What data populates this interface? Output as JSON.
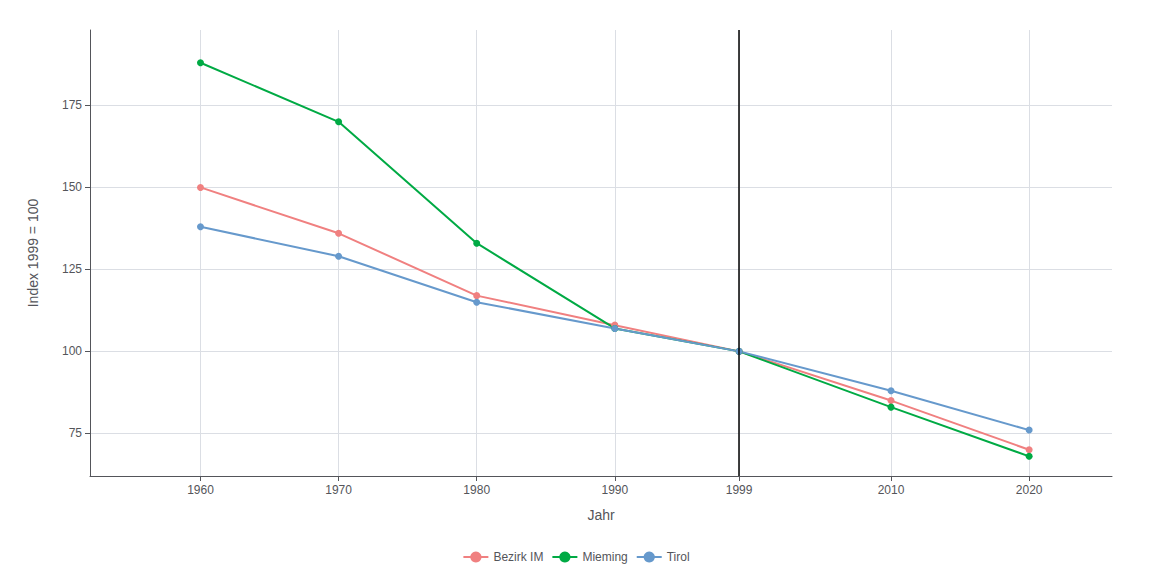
{
  "chart_data": {
    "type": "line",
    "x": [
      1960,
      1970,
      1980,
      1990,
      1999,
      2010,
      2020
    ],
    "series": [
      {
        "name": "Bezirk IM",
        "color": "#F08080",
        "marker": "circle",
        "values": [
          150,
          136,
          117,
          108,
          100,
          85,
          70
        ]
      },
      {
        "name": "Mieming",
        "color": "#00AA44",
        "marker": "circle",
        "values": [
          188,
          170,
          133,
          107,
          100,
          83,
          68
        ]
      },
      {
        "name": "Tirol",
        "color": "#6699CC",
        "marker": "circle",
        "values": [
          138,
          129,
          115,
          107,
          100,
          88,
          76
        ]
      }
    ],
    "xlabel": "Jahr",
    "ylabel": "Index 1999 = 100",
    "vline_x": 1999,
    "xlim": [
      1952,
      2026
    ],
    "ylim": [
      62,
      198
    ],
    "xticks": [
      1960,
      1970,
      1980,
      1990,
      1999,
      2010,
      2020
    ],
    "yticks": [
      75,
      100,
      125,
      150,
      175
    ],
    "grid": true,
    "legend": "bottom"
  }
}
